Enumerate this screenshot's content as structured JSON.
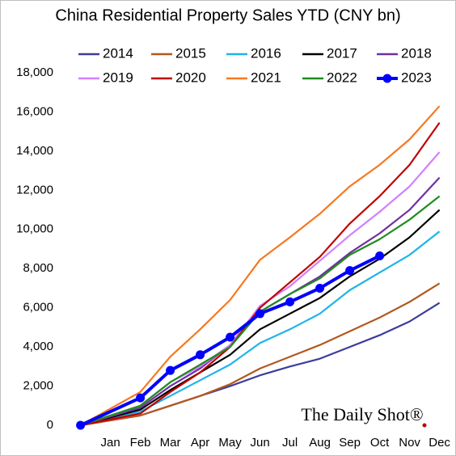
{
  "chart_data": {
    "type": "line",
    "title": "China Residential Property Sales YTD (CNY bn)",
    "watermark": "The Daily Shot®",
    "x": [
      0,
      2,
      3,
      4,
      5,
      6,
      7,
      8,
      9,
      10,
      11,
      12
    ],
    "xlim": [
      -0.8,
      12.2
    ],
    "xticks": [
      {
        "value": 1,
        "label": "Jan"
      },
      {
        "value": 2,
        "label": "Feb"
      },
      {
        "value": 3,
        "label": "Mar"
      },
      {
        "value": 4,
        "label": "Apr"
      },
      {
        "value": 5,
        "label": "May"
      },
      {
        "value": 6,
        "label": "Jun"
      },
      {
        "value": 7,
        "label": "Jul"
      },
      {
        "value": 8,
        "label": "Aug"
      },
      {
        "value": 9,
        "label": "Sep"
      },
      {
        "value": 10,
        "label": "Oct"
      },
      {
        "value": 11,
        "label": "Nov"
      },
      {
        "value": 12,
        "label": "Dec"
      }
    ],
    "ylim": [
      0,
      18000
    ],
    "yticks": [
      0,
      {
        "value": 2000,
        "label": "2,000"
      },
      {
        "value": 4000,
        "label": "4,000"
      },
      {
        "value": 6000,
        "label": "6,000"
      },
      {
        "value": 8000,
        "label": "8,000"
      },
      {
        "value": 10000,
        "label": "10,000"
      },
      {
        "value": 12000,
        "label": "12,000"
      },
      {
        "value": 14000,
        "label": "14,000"
      },
      {
        "value": 16000,
        "label": "16,000"
      },
      {
        "value": 18000,
        "label": "18,000"
      }
    ],
    "grid": false,
    "legend": "top",
    "series": [
      {
        "name": "2014",
        "color": "#3c3c9c",
        "values": [
          0,
          500,
          1000,
          1500,
          2000,
          2550,
          3000,
          3400,
          4000,
          4600,
          5300,
          6250
        ]
      },
      {
        "name": "2015",
        "color": "#b3581f",
        "values": [
          0,
          500,
          1000,
          1500,
          2100,
          2900,
          3500,
          4100,
          4800,
          5500,
          6300,
          7250
        ]
      },
      {
        "name": "2016",
        "color": "#1eb4e8",
        "values": [
          0,
          700,
          1500,
          2300,
          3100,
          4200,
          4900,
          5700,
          6900,
          7800,
          8700,
          9900
        ]
      },
      {
        "name": "2017",
        "color": "#000000",
        "values": [
          0,
          800,
          1800,
          2700,
          3600,
          4900,
          5700,
          6500,
          7600,
          8500,
          9600,
          11000
        ]
      },
      {
        "name": "2018",
        "color": "#7030a0",
        "values": [
          0,
          900,
          2000,
          2900,
          4100,
          5800,
          6700,
          7600,
          8800,
          9800,
          11000,
          12650
        ]
      },
      {
        "name": "2019",
        "color": "#d17fff",
        "values": [
          0,
          1000,
          2200,
          3000,
          4100,
          6100,
          7100,
          8400,
          9700,
          10900,
          12200,
          13950
        ]
      },
      {
        "name": "2020",
        "color": "#c00000",
        "values": [
          0,
          600,
          1700,
          2700,
          4000,
          6000,
          7300,
          8600,
          10300,
          11700,
          13300,
          15450
        ]
      },
      {
        "name": "2021",
        "color": "#f7781f",
        "values": [
          0,
          1700,
          3500,
          4900,
          6400,
          8450,
          9600,
          10800,
          12200,
          13300,
          14600,
          16300
        ]
      },
      {
        "name": "2022",
        "color": "#1e8c1e",
        "values": [
          0,
          1000,
          2200,
          3100,
          4000,
          5800,
          6700,
          7500,
          8700,
          9500,
          10500,
          11700
        ]
      },
      {
        "name": "2023",
        "color": "#0000ff",
        "markers": true,
        "values": [
          0,
          1400,
          2800,
          3600,
          4500,
          5700,
          6300,
          7000,
          7900,
          8650,
          null,
          null
        ]
      }
    ]
  }
}
